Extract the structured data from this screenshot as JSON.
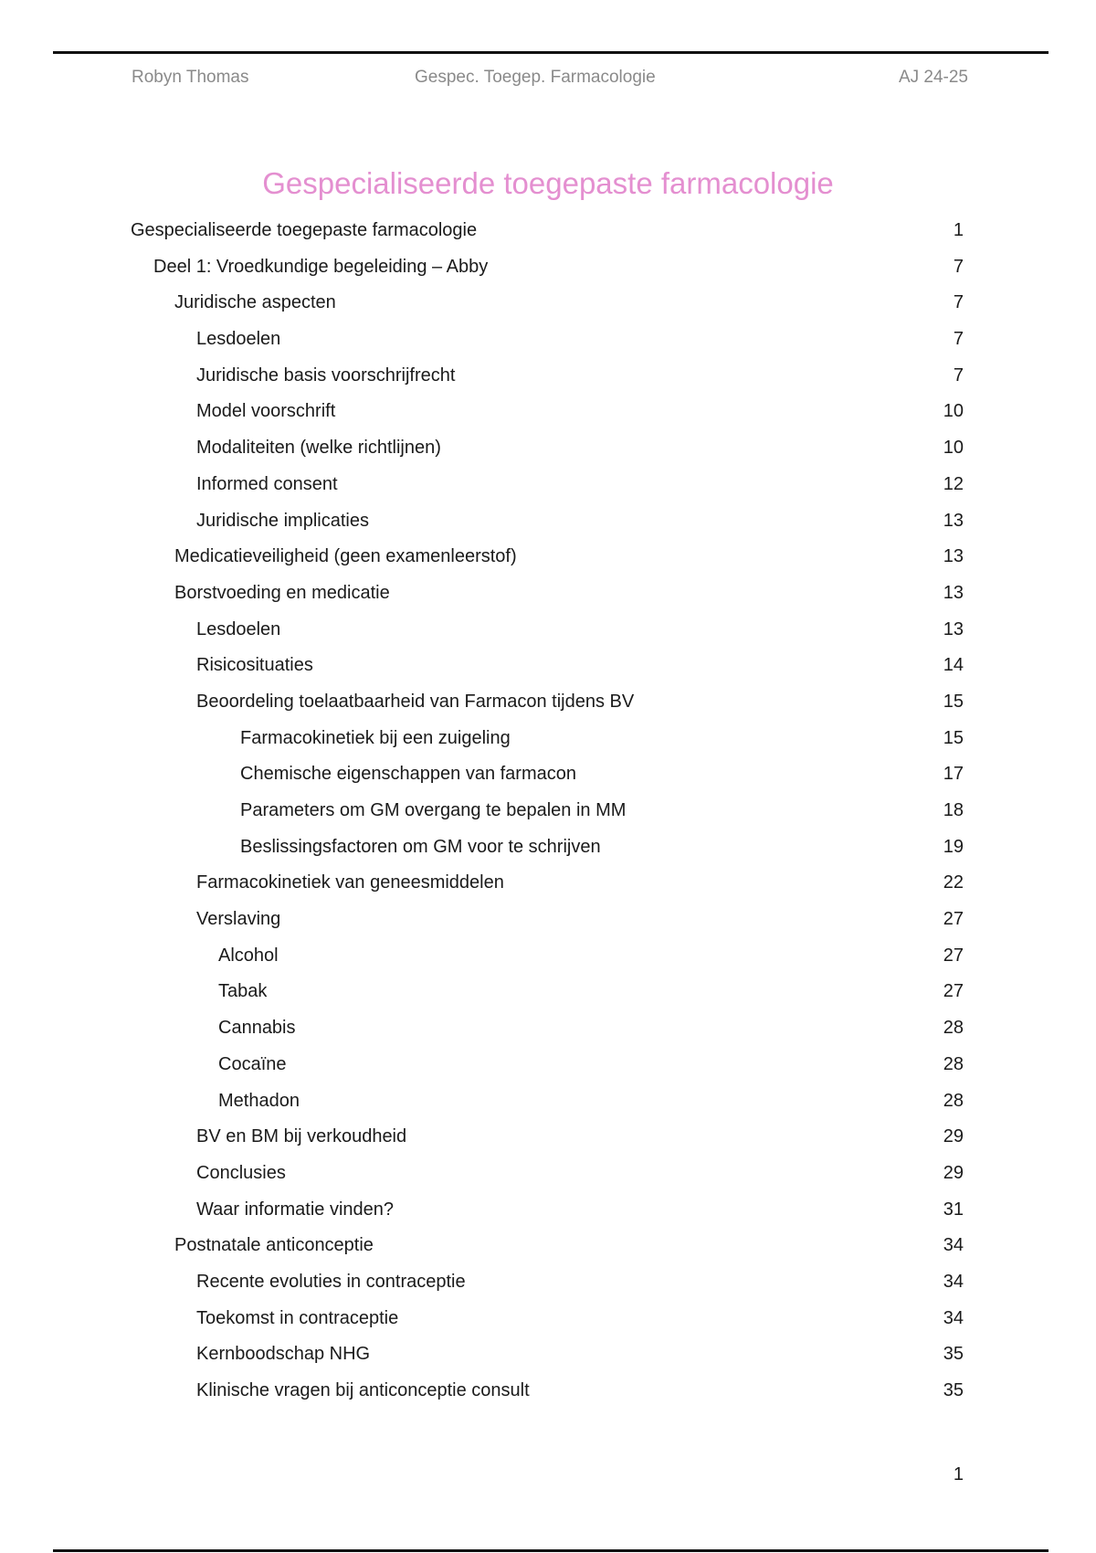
{
  "header": {
    "author": "Robyn Thomas",
    "course": "Gespec. Toegep. Farmacologie",
    "year": "AJ 24-25"
  },
  "title": "Gespecialiseerde toegepaste farmacologie",
  "accent_color": "#e48fd0",
  "toc": [
    {
      "label": "Gespecialiseerde toegepaste farmacologie",
      "page": "1",
      "level": 0
    },
    {
      "label": "Deel 1: Vroedkundige begeleiding – Abby",
      "page": "7",
      "level": 1
    },
    {
      "label": "Juridische aspecten",
      "page": "7",
      "level": 2
    },
    {
      "label": "Lesdoelen",
      "page": "7",
      "level": 3
    },
    {
      "label": "Juridische basis voorschrijfrecht",
      "page": "7",
      "level": 3
    },
    {
      "label": "Model voorschrift",
      "page": "10",
      "level": 3
    },
    {
      "label": "Modaliteiten (welke richtlijnen)",
      "page": "10",
      "level": 3
    },
    {
      "label": "Informed consent",
      "page": "12",
      "level": 3
    },
    {
      "label": "Juridische implicaties",
      "page": "13",
      "level": 3
    },
    {
      "label": "Medicatieveiligheid (geen examenleerstof)",
      "page": "13",
      "level": 2
    },
    {
      "label": "Borstvoeding en medicatie",
      "page": "13",
      "level": 2
    },
    {
      "label": "Lesdoelen",
      "page": "13",
      "level": 3
    },
    {
      "label": "Risicosituaties",
      "page": "14",
      "level": 3
    },
    {
      "label": "Beoordeling toelaatbaarheid van Farmacon tijdens BV",
      "page": "15",
      "level": 3
    },
    {
      "label": "Farmacokinetiek bij een zuigeling",
      "page": "15",
      "level": 5
    },
    {
      "label": "Chemische eigenschappen van farmacon",
      "page": "17",
      "level": 5
    },
    {
      "label": "Parameters om GM overgang te bepalen in MM",
      "page": "18",
      "level": 5
    },
    {
      "label": "Beslissingsfactoren om GM voor te schrijven",
      "page": "19",
      "level": 5
    },
    {
      "label": "Farmacokinetiek van geneesmiddelen",
      "page": "22",
      "level": 3
    },
    {
      "label": "Verslaving",
      "page": "27",
      "level": 3
    },
    {
      "label": "Alcohol",
      "page": "27",
      "level": 4
    },
    {
      "label": "Tabak",
      "page": "27",
      "level": 4
    },
    {
      "label": "Cannabis",
      "page": "28",
      "level": 4
    },
    {
      "label": "Cocaïne",
      "page": "28",
      "level": 4
    },
    {
      "label": "Methadon",
      "page": "28",
      "level": 4
    },
    {
      "label": "BV en BM bij verkoudheid",
      "page": "29",
      "level": 3
    },
    {
      "label": "Conclusies",
      "page": "29",
      "level": 3
    },
    {
      "label": "Waar informatie vinden?",
      "page": "31",
      "level": 3
    },
    {
      "label": "Postnatale anticonceptie",
      "page": "34",
      "level": 2
    },
    {
      "label": "Recente evoluties in contraceptie",
      "page": "34",
      "level": 3
    },
    {
      "label": "Toekomst in contraceptie",
      "page": "34",
      "level": 3
    },
    {
      "label": "Kernboodschap NHG",
      "page": "35",
      "level": 3
    },
    {
      "label": "Klinische vragen bij anticonceptie consult",
      "page": "35",
      "level": 3
    }
  ],
  "page_number": "1"
}
